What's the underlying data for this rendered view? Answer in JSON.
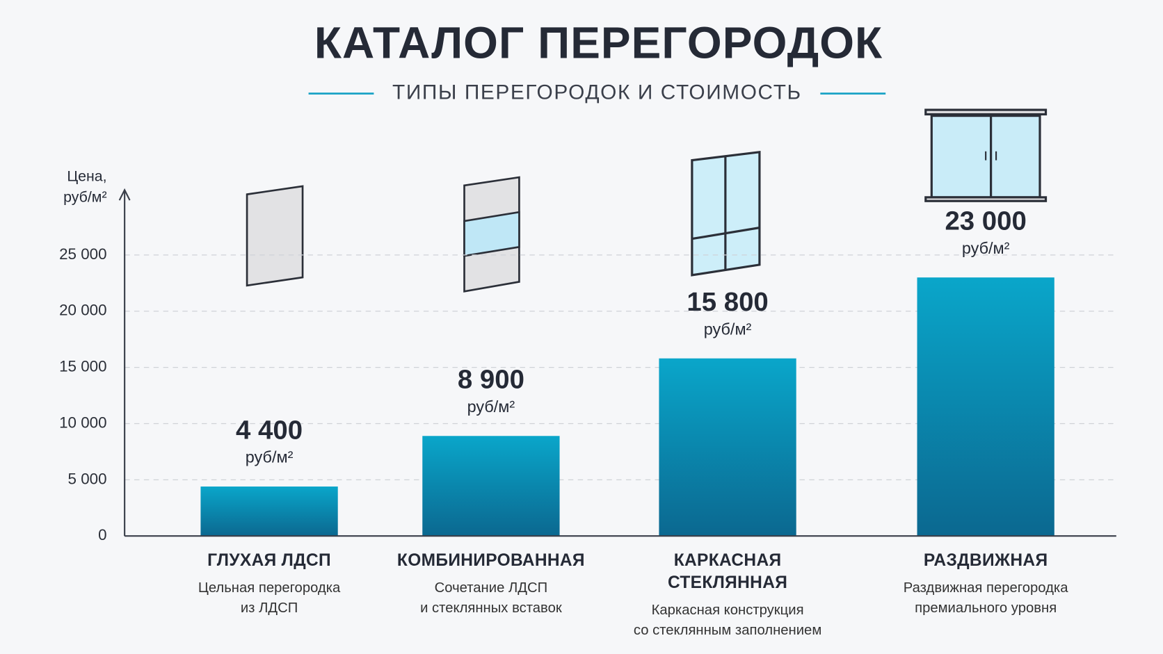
{
  "chart_data": {
    "type": "bar",
    "title": "КАТАЛОГ ПЕРЕГОРОДОК",
    "subtitle": "ТИПЫ ПЕРЕГОРОДОК И СТОИМОСТЬ",
    "y_label": "Цена, руб/м²",
    "categories": [
      "ГЛУХАЯ ЛДСП",
      "КОМБИНИРОВАННАЯ",
      "КАРКАСНАЯ СТЕКЛЯННАЯ",
      "РАЗДВИЖНАЯ"
    ],
    "descriptions": [
      [
        "Цельная перегородка",
        "из ЛДСП"
      ],
      [
        "Сочетание ЛДСП",
        "и стеклянных вставок"
      ],
      [
        "Каркасная конструкция",
        "со стеклянным заполнением"
      ],
      [
        "Раздвижная перегородка",
        "премиального уровня"
      ]
    ],
    "values": [
      4400,
      8900,
      15800,
      23000
    ],
    "value_labels": [
      "4 400",
      "8 900",
      "15 800",
      "23 000"
    ],
    "value_unit": "руб/м²",
    "color_top": "#0aa6ca",
    "color_bottom": "#0b6890",
    "ylim": [
      0,
      30000
    ],
    "yticks": [
      0,
      {
        "value": 5000,
        "label": "5 000"
      },
      {
        "value": 10000,
        "label": "10 000"
      },
      {
        "value": 15000,
        "label": "15 000"
      },
      {
        "value": 20000,
        "label": "20 000"
      },
      {
        "value": 25000,
        "label": "25 000"
      }
    ],
    "grid": true
  }
}
